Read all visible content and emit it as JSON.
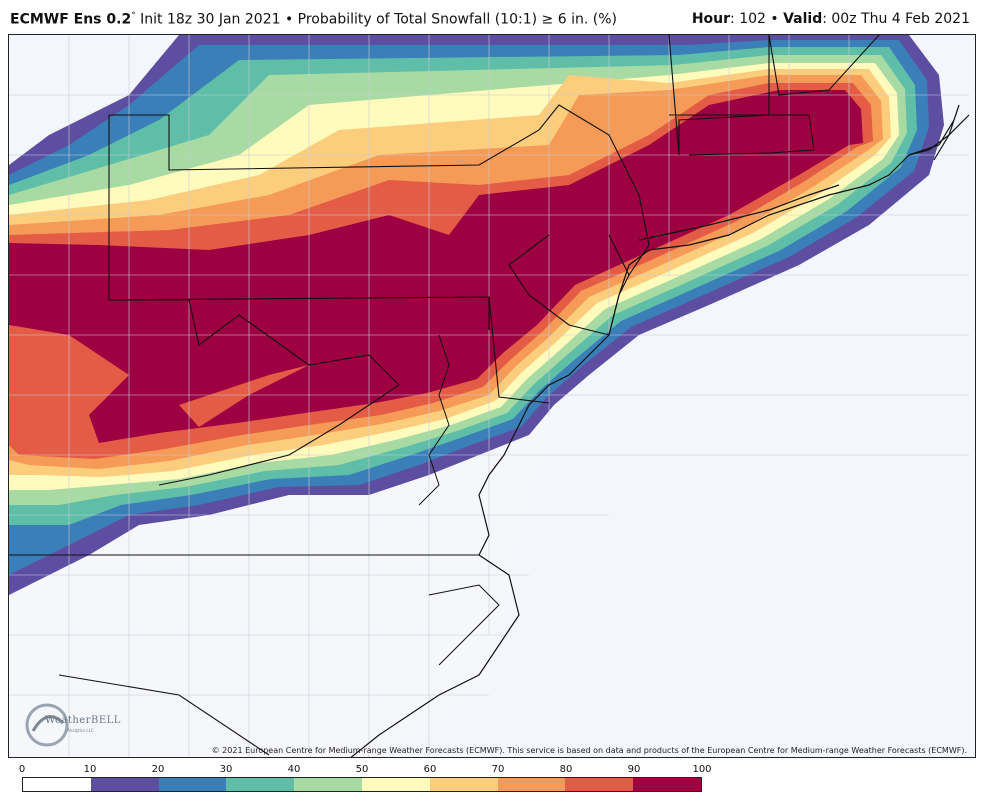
{
  "header": {
    "model": "ECMWF Ens 0.2",
    "degree": "°",
    "description": " Init 18z 30 Jan 2021 • Probability of Total Snowfall (10:1) ≥ 6 in. (%)",
    "hour_label": "Hour",
    "hour_value": ": 102 • ",
    "valid_label": "Valid",
    "valid_value": ": 00z Thu 4 Feb 2021"
  },
  "copyright": "© 2021 European Centre for Medium-range Weather Forecasts (ECMWF). This service is based on data and products of the European Centre for Medium-range Weather Forecasts (ECMWF).",
  "logo": {
    "text": "WeatherBELL",
    "sub": "Analytics LLC"
  },
  "colorbar": {
    "ticks": [
      "0",
      "10",
      "20",
      "30",
      "40",
      "50",
      "60",
      "70",
      "80",
      "90",
      "100"
    ],
    "colors": [
      "#ffffff",
      "#5e4ea2",
      "#3a7fb8",
      "#5ebea8",
      "#a7dba3",
      "#fffbbc",
      "#fdcd7e",
      "#f59a57",
      "#e45c46",
      "#9e0142"
    ]
  },
  "map": {
    "background": "#f3f6fc",
    "band_colors": [
      "#5e4ea2",
      "#3a7fb8",
      "#5ebea8",
      "#a7dba3",
      "#fffbbc",
      "#fdcd7e",
      "#f59a57",
      "#e45c46",
      "#9e0142"
    ]
  }
}
